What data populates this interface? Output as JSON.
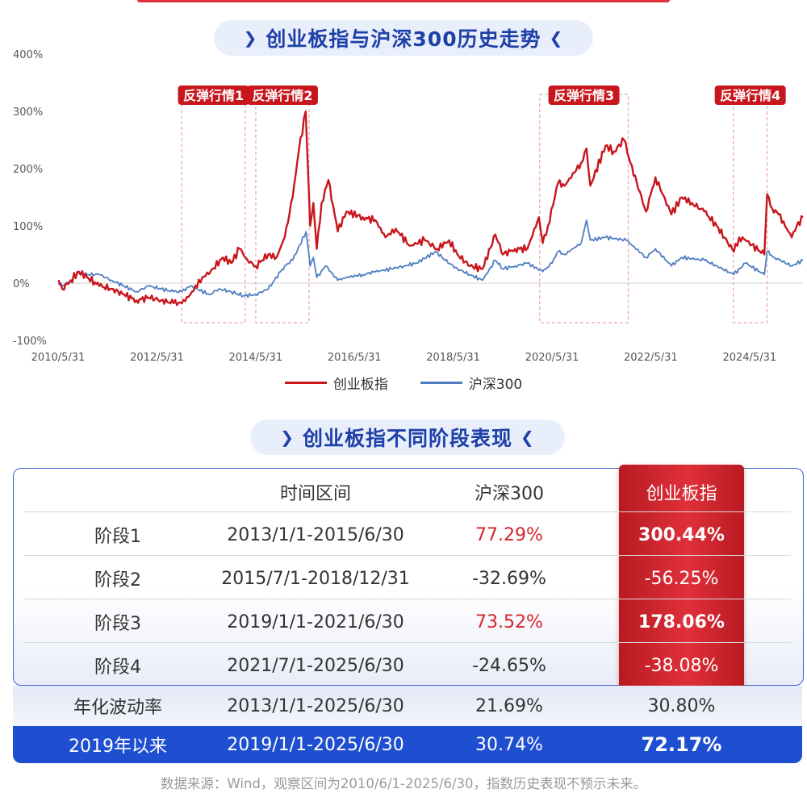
{
  "title_chart": "创业板指与沪深300历史走势",
  "title_table": "创业板指不同阶段表现",
  "chart_data": {
    "type": "line",
    "y_ticks": [
      "400%",
      "300%",
      "200%",
      "100%",
      "0%",
      "-100%"
    ],
    "ylim": [
      -100,
      400
    ],
    "x_ticks": [
      "2010/5/31",
      "2012/5/31",
      "2014/5/31",
      "2016/5/31",
      "2018/5/31",
      "2020/5/31",
      "2022/5/31",
      "2024/5/31"
    ],
    "xlim": [
      "2010/5/31",
      "2025/6/30"
    ],
    "series": [
      {
        "name": "创业板指",
        "color": "#c8161d",
        "points": [
          [
            "2010/6/1",
            5
          ],
          [
            "2010/7/1",
            -10
          ],
          [
            "2010/9/1",
            5
          ],
          [
            "2010/11/1",
            20
          ],
          [
            "2011/1/1",
            10
          ],
          [
            "2011/4/1",
            -5
          ],
          [
            "2011/7/1",
            -10
          ],
          [
            "2011/10/1",
            -20
          ],
          [
            "2012/1/1",
            -30
          ],
          [
            "2012/4/1",
            -25
          ],
          [
            "2012/7/1",
            -30
          ],
          [
            "2012/10/1",
            -35
          ],
          [
            "2012/12/1",
            -35
          ],
          [
            "2013/2/1",
            -20
          ],
          [
            "2013/5/1",
            10
          ],
          [
            "2013/7/1",
            20
          ],
          [
            "2013/10/1",
            45
          ],
          [
            "2013/12/1",
            35
          ],
          [
            "2014/2/1",
            60
          ],
          [
            "2014/4/1",
            40
          ],
          [
            "2014/6/1",
            30
          ],
          [
            "2014/9/1",
            50
          ],
          [
            "2014/11/1",
            45
          ],
          [
            "2015/1/1",
            80
          ],
          [
            "2015/3/1",
            150
          ],
          [
            "2015/4/15",
            230
          ],
          [
            "2015/6/5",
            300
          ],
          [
            "2015/7/8",
            100
          ],
          [
            "2015/8/1",
            140
          ],
          [
            "2015/8/26",
            60
          ],
          [
            "2015/10/1",
            140
          ],
          [
            "2015/11/20",
            180
          ],
          [
            "2016/1/28",
            90
          ],
          [
            "2016/4/1",
            125
          ],
          [
            "2016/8/1",
            115
          ],
          [
            "2016/11/1",
            110
          ],
          [
            "2017/1/15",
            80
          ],
          [
            "2017/4/1",
            95
          ],
          [
            "2017/7/15",
            65
          ],
          [
            "2017/11/1",
            75
          ],
          [
            "2018/2/1",
            60
          ],
          [
            "2018/5/1",
            75
          ],
          [
            "2018/7/1",
            50
          ],
          [
            "2018/10/1",
            30
          ],
          [
            "2019/1/3",
            25
          ],
          [
            "2019/4/8",
            85
          ],
          [
            "2019/6/1",
            50
          ],
          [
            "2019/9/1",
            60
          ],
          [
            "2019/12/1",
            60
          ],
          [
            "2020/2/24",
            115
          ],
          [
            "2020/3/23",
            70
          ],
          [
            "2020/5/1",
            100
          ],
          [
            "2020/7/15",
            175
          ],
          [
            "2020/9/1",
            170
          ],
          [
            "2021/1/1",
            210
          ],
          [
            "2021/2/10",
            235
          ],
          [
            "2021/3/10",
            170
          ],
          [
            "2021/7/1",
            240
          ],
          [
            "2021/9/1",
            230
          ],
          [
            "2021/11/15",
            250
          ],
          [
            "2022/1/1",
            210
          ],
          [
            "2022/4/26",
            125
          ],
          [
            "2022/7/5",
            185
          ],
          [
            "2022/10/31",
            120
          ],
          [
            "2023/1/15",
            150
          ],
          [
            "2023/4/1",
            140
          ],
          [
            "2023/7/1",
            125
          ],
          [
            "2023/10/1",
            100
          ],
          [
            "2024/2/5",
            55
          ],
          [
            "2024/3/15",
            80
          ],
          [
            "2024/5/1",
            75
          ],
          [
            "2024/9/18",
            50
          ],
          [
            "2024/10/8",
            155
          ],
          [
            "2024/11/15",
            130
          ],
          [
            "2025/1/1",
            120
          ],
          [
            "2025/4/8",
            80
          ],
          [
            "2025/5/15",
            100
          ],
          [
            "2025/6/30",
            115
          ]
        ]
      },
      {
        "name": "沪深300",
        "color": "#4f7ec2",
        "points": [
          [
            "2010/6/1",
            0
          ],
          [
            "2010/7/1",
            -5
          ],
          [
            "2010/9/1",
            5
          ],
          [
            "2010/11/1",
            20
          ],
          [
            "2011/1/1",
            15
          ],
          [
            "2011/4/1",
            15
          ],
          [
            "2011/7/1",
            5
          ],
          [
            "2011/10/1",
            -5
          ],
          [
            "2012/1/1",
            -15
          ],
          [
            "2012/4/1",
            -5
          ],
          [
            "2012/7/1",
            -10
          ],
          [
            "2012/10/1",
            -15
          ],
          [
            "2012/12/1",
            -15
          ],
          [
            "2013/2/1",
            -5
          ],
          [
            "2013/6/25",
            -20
          ],
          [
            "2013/9/1",
            -10
          ],
          [
            "2013/12/1",
            -15
          ],
          [
            "2014/3/1",
            -22
          ],
          [
            "2014/6/1",
            -20
          ],
          [
            "2014/9/1",
            -10
          ],
          [
            "2014/12/1",
            20
          ],
          [
            "2015/1/1",
            30
          ],
          [
            "2015/3/1",
            40
          ],
          [
            "2015/6/8",
            90
          ],
          [
            "2015/7/8",
            30
          ],
          [
            "2015/8/1",
            45
          ],
          [
            "2015/8/26",
            10
          ],
          [
            "2015/11/1",
            30
          ],
          [
            "2016/1/28",
            5
          ],
          [
            "2016/4/1",
            10
          ],
          [
            "2016/8/1",
            15
          ],
          [
            "2016/11/1",
            20
          ],
          [
            "2017/3/1",
            25
          ],
          [
            "2017/6/1",
            30
          ],
          [
            "2017/9/1",
            35
          ],
          [
            "2018/1/24",
            55
          ],
          [
            "2018/4/1",
            40
          ],
          [
            "2018/7/1",
            25
          ],
          [
            "2018/10/1",
            15
          ],
          [
            "2019/1/3",
            5
          ],
          [
            "2019/4/8",
            40
          ],
          [
            "2019/6/1",
            25
          ],
          [
            "2019/9/1",
            30
          ],
          [
            "2019/12/1",
            35
          ],
          [
            "2020/3/23",
            20
          ],
          [
            "2020/6/1",
            35
          ],
          [
            "2020/7/15",
            55
          ],
          [
            "2020/9/1",
            50
          ],
          [
            "2021/1/1",
            70
          ],
          [
            "2021/2/10",
            110
          ],
          [
            "2021/3/10",
            75
          ],
          [
            "2021/7/1",
            80
          ],
          [
            "2021/12/1",
            75
          ],
          [
            "2022/4/26",
            45
          ],
          [
            "2022/7/5",
            60
          ],
          [
            "2022/10/31",
            30
          ],
          [
            "2023/1/15",
            45
          ],
          [
            "2023/7/1",
            40
          ],
          [
            "2023/10/1",
            30
          ],
          [
            "2024/2/5",
            15
          ],
          [
            "2024/5/1",
            35
          ],
          [
            "2024/9/18",
            15
          ],
          [
            "2024/10/8",
            55
          ],
          [
            "2024/12/1",
            45
          ],
          [
            "2025/4/8",
            30
          ],
          [
            "2025/6/30",
            40
          ]
        ]
      }
    ],
    "annotations": [
      {
        "label": "反弹行情1",
        "from": "2012/12/1",
        "to": "2014/3/15"
      },
      {
        "label": "反弹行情2",
        "from": "2014/6/1",
        "to": "2015/6/30"
      },
      {
        "label": "反弹行情3",
        "from": "2020/3/1",
        "to": "2021/12/15"
      },
      {
        "label": "反弹行情4",
        "from": "2024/2/1",
        "to": "2024/10/8"
      }
    ],
    "legend_position": "bottom-center"
  },
  "table": {
    "headers": [
      "",
      "时间区间",
      "沪深300",
      "创业板指"
    ],
    "rows": [
      {
        "label": "阶段1",
        "period": "2013/1/1-2015/6/30",
        "hs300": "77.29%",
        "cyb": "300.44%"
      },
      {
        "label": "阶段2",
        "period": "2015/7/1-2018/12/31",
        "hs300": "-32.69%",
        "cyb": "-56.25%"
      },
      {
        "label": "阶段3",
        "period": "2019/1/1-2021/6/30",
        "hs300": "73.52%",
        "cyb": "178.06%"
      },
      {
        "label": "阶段4",
        "period": "2021/7/1-2025/6/30",
        "hs300": "-24.65%",
        "cyb": "-38.08%"
      }
    ],
    "volatility": {
      "label": "年化波动率",
      "period": "2013/1/1-2025/6/30",
      "hs300": "21.69%",
      "cyb": "30.80%"
    },
    "since2019": {
      "label": "2019年以来",
      "period": "2019/1/1-2025/6/30",
      "hs300": "30.74%",
      "cyb": "72.17%"
    }
  },
  "footnote": "数据来源：Wind，观察区间为2010/6/1-2025/6/30，指数历史表现不预示未来。",
  "colors": {
    "red": "#c8161d",
    "blue": "#4f7ec2",
    "accent_blue": "#1f4fd1"
  }
}
